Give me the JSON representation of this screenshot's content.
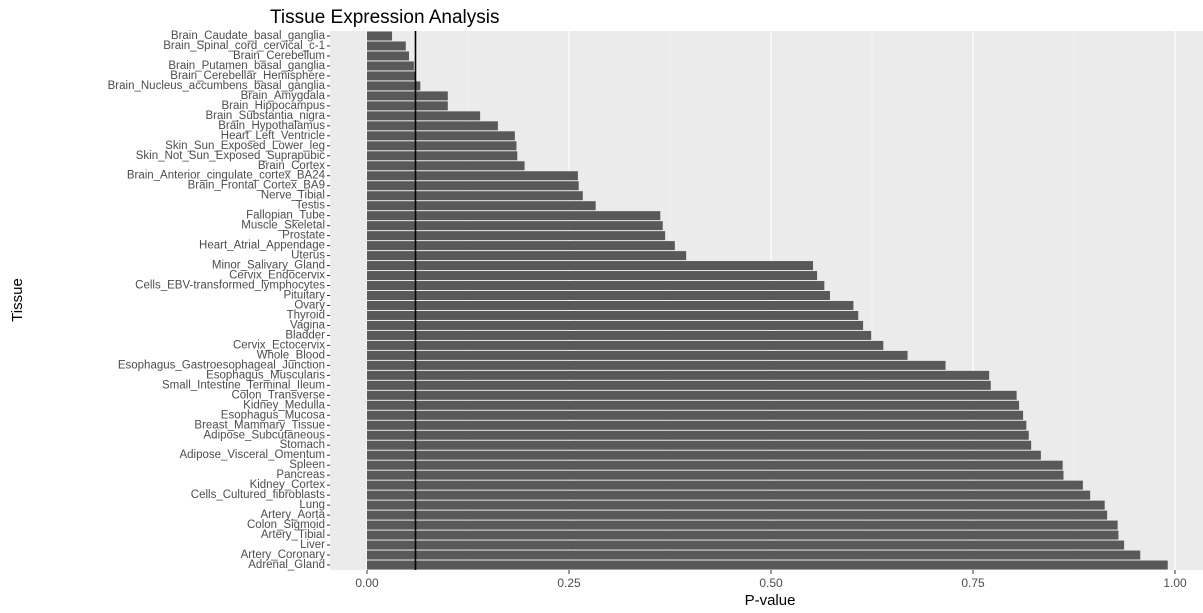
{
  "chart_data": {
    "type": "bar",
    "orientation": "horizontal",
    "title": "Tissue Expression Analysis",
    "xlabel": "P-value",
    "ylabel": "Tissue",
    "xlim": [
      0,
      1
    ],
    "x_ticks": [
      0,
      0.25,
      0.5,
      0.75,
      1.0
    ],
    "x_tick_labels": [
      "0.00",
      "0.25",
      "0.50",
      "0.75",
      "1.00"
    ],
    "reference_line": 0.06,
    "grid": true,
    "bar_color": "#595959",
    "panel_color": "#ebebeb",
    "categories": [
      "Brain_Caudate_basal_ganglia",
      "Brain_Spinal_cord_cervical_c-1",
      "Brain_Cerebellum",
      "Brain_Putamen_basal_ganglia",
      "Brain_Cerebellar_Hemisphere",
      "Brain_Nucleus_accumbens_basal_ganglia",
      "Brain_Amygdala",
      "Brain_Hippocampus",
      "Brain_Substantia_nigra",
      "Brain_Hypothalamus",
      "Heart_Left_Ventricle",
      "Skin_Sun_Exposed_Lower_leg",
      "Skin_Not_Sun_Exposed_Suprapubic",
      "Brain_Cortex",
      "Brain_Anterior_cingulate_cortex_BA24",
      "Brain_Frontal_Cortex_BA9",
      "Nerve_Tibial",
      "Testis",
      "Fallopian_Tube",
      "Muscle_Skeletal",
      "Prostate",
      "Heart_Atrial_Appendage",
      "Uterus",
      "Minor_Salivary_Gland",
      "Cervix_Endocervix",
      "Cells_EBV-transformed_lymphocytes",
      "Pituitary",
      "Ovary",
      "Thyroid",
      "Vagina",
      "Bladder",
      "Cervix_Ectocervix",
      "Whole_Blood",
      "Esophagus_Gastroesophageal_Junction",
      "Esophagus_Muscularis",
      "Small_Intestine_Terminal_Ileum",
      "Colon_Transverse",
      "Kidney_Medulla",
      "Esophagus_Mucosa",
      "Breast_Mammary_Tissue",
      "Adipose_Subcutaneous",
      "Stomach",
      "Adipose_Visceral_Omentum",
      "Spleen",
      "Pancreas",
      "Kidney_Cortex",
      "Cells_Cultured_fibroblasts",
      "Lung",
      "Artery_Aorta",
      "Colon_Sigmoid",
      "Artery_Tibial",
      "Liver",
      "Artery_Coronary",
      "Adrenal_Gland"
    ],
    "values": [
      0.031,
      0.048,
      0.052,
      0.058,
      0.06,
      0.066,
      0.1,
      0.1,
      0.14,
      0.162,
      0.183,
      0.185,
      0.186,
      0.195,
      0.261,
      0.262,
      0.267,
      0.283,
      0.363,
      0.366,
      0.369,
      0.381,
      0.395,
      0.552,
      0.557,
      0.566,
      0.573,
      0.602,
      0.608,
      0.614,
      0.624,
      0.639,
      0.669,
      0.716,
      0.77,
      0.772,
      0.804,
      0.807,
      0.812,
      0.816,
      0.819,
      0.822,
      0.834,
      0.861,
      0.862,
      0.886,
      0.895,
      0.913,
      0.916,
      0.929,
      0.93,
      0.937,
      0.957,
      0.991
    ]
  }
}
